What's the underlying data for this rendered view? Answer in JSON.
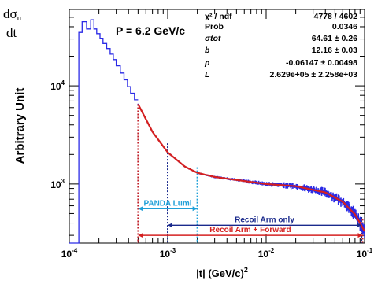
{
  "corner_label": {
    "numerator": "dσ",
    "numerator_sub": "n",
    "denominator": "dt"
  },
  "chart_data": {
    "type": "histogram",
    "title": "P = 6.2 GeV/c",
    "xlabel": "|t| (GeV/c)",
    "xlabel_exponent": "2",
    "ylabel": "Arbitrary Unit",
    "x_scale": "log",
    "y_scale": "log",
    "xlim": [
      0.0001,
      0.1
    ],
    "ylim": [
      250,
      60000
    ],
    "x_ticks": [
      {
        "value": 0.0001,
        "base": "10",
        "exp": "-4"
      },
      {
        "value": 0.001,
        "base": "10",
        "exp": "-3"
      },
      {
        "value": 0.01,
        "base": "10",
        "exp": "-2"
      },
      {
        "value": 0.1,
        "base": "10",
        "exp": "-1"
      }
    ],
    "y_ticks": [
      {
        "value": 1000,
        "base": "10",
        "exp": "3"
      },
      {
        "value": 10000,
        "base": "10",
        "exp": "4"
      }
    ],
    "stats": [
      {
        "label": "χ² / ndf",
        "value": "4778 / 4602"
      },
      {
        "label": "Prob",
        "value": "0.0346"
      },
      {
        "label": "σtot",
        "value": "64.61 ± 0.26"
      },
      {
        "label": "b",
        "value": "12.16 ± 0.03"
      },
      {
        "label": "ρ",
        "value": "-0.06147 ± 0.00498"
      },
      {
        "label": "L",
        "value": "2.629e+05 ± 2.258e+03"
      }
    ],
    "histogram": {
      "color": "#2a2ae6",
      "points": [
        [
          0.0001,
          250
        ],
        [
          0.000125,
          250
        ],
        [
          0.000125,
          35000
        ],
        [
          0.000135,
          35000
        ],
        [
          0.000135,
          45000
        ],
        [
          0.00015,
          45000
        ],
        [
          0.00015,
          38000
        ],
        [
          0.000165,
          38000
        ],
        [
          0.000165,
          47000
        ],
        [
          0.000178,
          47000
        ],
        [
          0.000178,
          38000
        ],
        [
          0.00019,
          38000
        ],
        [
          0.00019,
          34000
        ],
        [
          0.000205,
          34000
        ],
        [
          0.000205,
          30500
        ],
        [
          0.00022,
          30500
        ],
        [
          0.00022,
          27000
        ],
        [
          0.00024,
          27000
        ],
        [
          0.00024,
          24000
        ],
        [
          0.00026,
          24000
        ],
        [
          0.00026,
          21000
        ],
        [
          0.00028,
          21000
        ],
        [
          0.00028,
          18500
        ],
        [
          0.0003,
          18500
        ],
        [
          0.0003,
          16000
        ],
        [
          0.00033,
          16000
        ],
        [
          0.00033,
          13500
        ],
        [
          0.00036,
          13500
        ],
        [
          0.00036,
          11500
        ],
        [
          0.00039,
          11500
        ],
        [
          0.00039,
          9800
        ],
        [
          0.00042,
          9800
        ],
        [
          0.00042,
          8400
        ],
        [
          0.00046,
          8400
        ],
        [
          0.00046,
          7200
        ],
        [
          0.0005,
          7200
        ]
      ]
    },
    "fit_curve": {
      "color": "#d42020",
      "x": [
        0.0005,
        0.0007,
        0.001,
        0.0015,
        0.002,
        0.003,
        0.005,
        0.01,
        0.02,
        0.04,
        0.06,
        0.08,
        0.09,
        0.1
      ],
      "y": [
        6500,
        3400,
        2100,
        1500,
        1300,
        1180,
        1100,
        1000,
        950,
        820,
        660,
        490,
        400,
        330
      ]
    },
    "vertical_lines": [
      {
        "x": 0.0005,
        "y_top": 6500,
        "color": "#c0202a"
      },
      {
        "x": 0.001,
        "y_top": 2600,
        "color": "#1a2a8c"
      },
      {
        "x": 0.002,
        "y_top": 1480,
        "color": "#1fa0d8"
      },
      {
        "x": 0.093,
        "y_top": 460,
        "color": "#1a2a8c"
      },
      {
        "x": 0.0955,
        "y_top": 440,
        "color": "#c0202a"
      }
    ],
    "ranges": [
      {
        "label": "PANDA  Lumi",
        "x1": 0.0005,
        "x2": 0.002,
        "y": 560,
        "color": "#1fa0d8"
      },
      {
        "label": "Recoil Arm only",
        "x1": 0.001,
        "x2": 0.093,
        "y": 380,
        "color": "#1a2a8c"
      },
      {
        "label": "Recoil Arm + Forward",
        "x1": 0.0005,
        "x2": 0.0955,
        "y": 300,
        "color": "#d42020"
      }
    ]
  }
}
